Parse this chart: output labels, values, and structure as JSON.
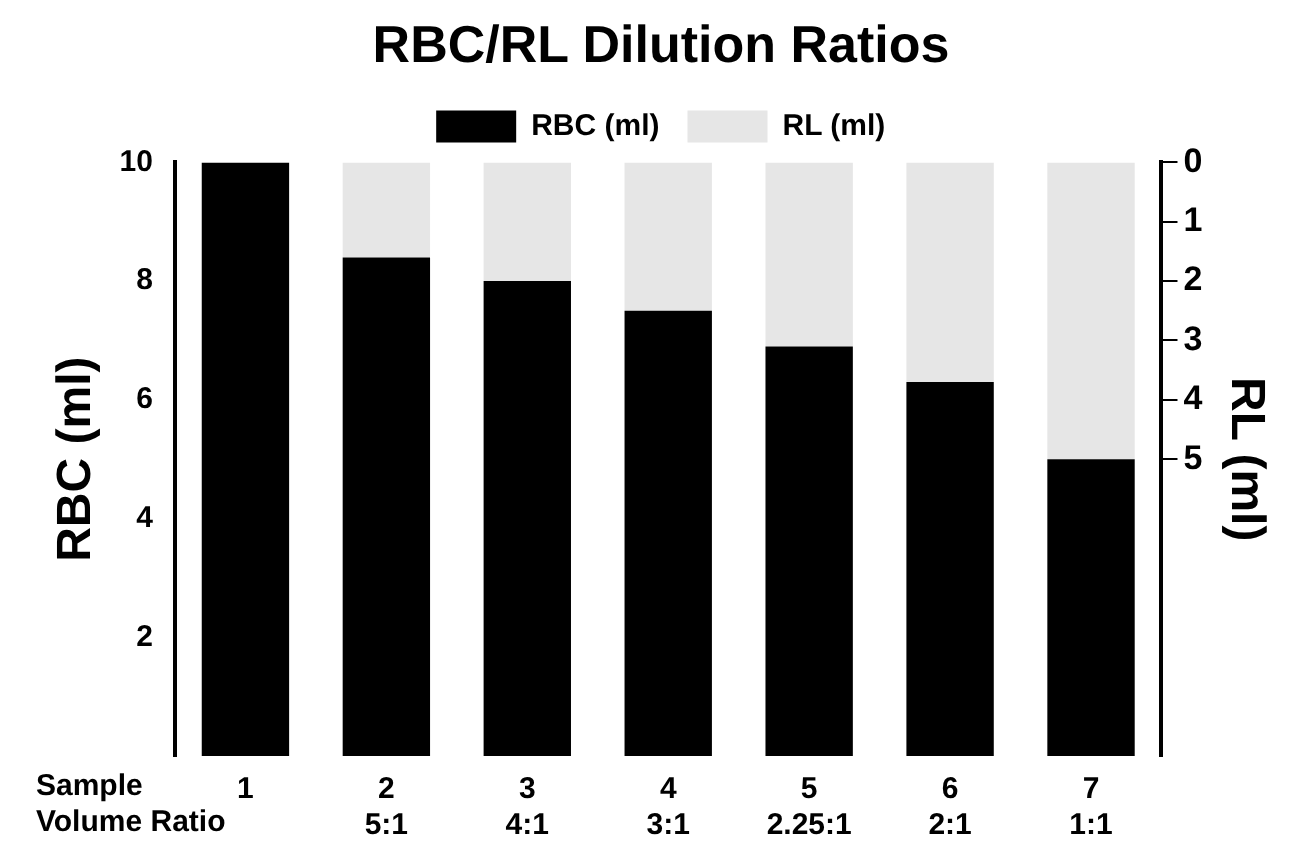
{
  "chart_data": {
    "type": "bar",
    "title": "RBC/RL Dilution Ratios",
    "ylabel": "RBC (ml)",
    "y2label": "RL (ml)",
    "categories": [
      "1",
      "2\n5:1",
      "3\n4:1",
      "4\n3:1",
      "5\n2.25:1",
      "6\n2:1",
      "7\n1:1"
    ],
    "annotations": [
      "Sample",
      "Volume Ratio"
    ],
    "stacked": true,
    "series": [
      {
        "name": "RBC (ml)",
        "color": "#000000",
        "values": [
          10,
          8.4,
          8.0,
          7.5,
          6.9,
          6.3,
          5.0
        ]
      },
      {
        "name": "RL (ml)",
        "color": "#e6e6e6",
        "values": [
          0,
          1.6,
          2.0,
          2.5,
          3.1,
          3.7,
          5.0
        ]
      }
    ],
    "ylim": [
      0,
      10
    ],
    "yticks": [
      2,
      4,
      6,
      8,
      10
    ],
    "y2lim": [
      10,
      0
    ],
    "y2ticks": [
      0,
      1,
      2,
      3,
      4,
      5
    ],
    "grid": false,
    "legend": "top"
  }
}
